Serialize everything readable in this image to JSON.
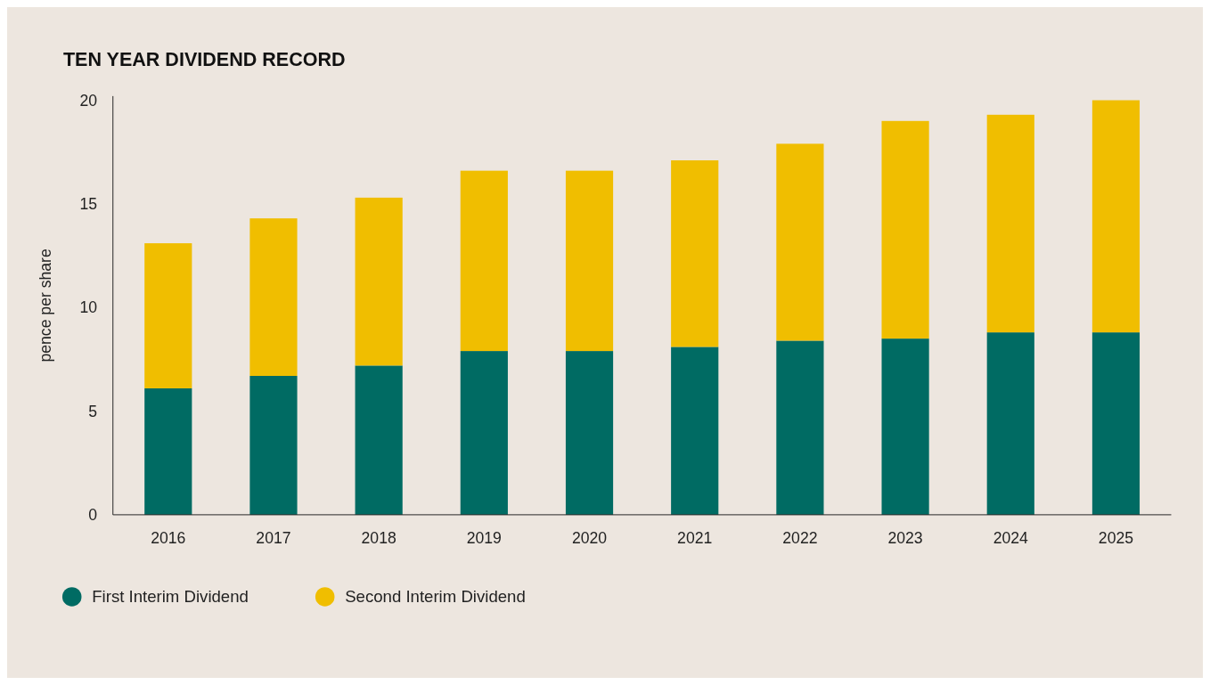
{
  "chart_data": {
    "type": "bar",
    "title": "TEN YEAR DIVIDEND RECORD",
    "ylabel": "pence per share",
    "categories": [
      "2016",
      "2017",
      "2018",
      "2019",
      "2020",
      "2021",
      "2022",
      "2023",
      "2024",
      "2025"
    ],
    "series": [
      {
        "name": "First Interim Dividend",
        "color": "#006b63",
        "values": [
          6.1,
          6.7,
          7.2,
          7.9,
          7.9,
          8.1,
          8.4,
          8.5,
          8.8,
          8.8
        ]
      },
      {
        "name": "Second Interim Dividend",
        "color": "#f0be00",
        "values": [
          7.0,
          7.6,
          8.1,
          8.7,
          8.7,
          9.0,
          9.5,
          10.5,
          10.5,
          11.2
        ]
      }
    ],
    "stacked": true,
    "ylim": [
      0,
      20.2
    ],
    "yticks": [
      0,
      5,
      10,
      15,
      20
    ],
    "grid": false,
    "legend": "bottom"
  }
}
